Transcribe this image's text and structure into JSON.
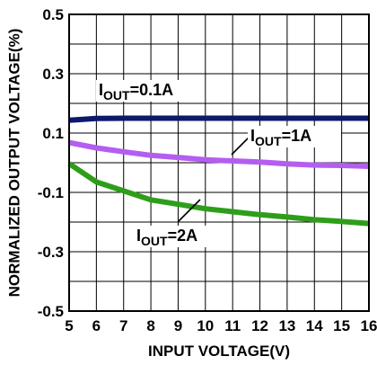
{
  "chart_data": {
    "type": "line",
    "xlabel": "INPUT VOLTAGE(V)",
    "ylabel": "NORMALIZED OUTPUT VOLTAGE(%)",
    "xlim": [
      5,
      16
    ],
    "ylim": [
      -0.5,
      0.5
    ],
    "x_ticks": [
      5,
      6,
      7,
      8,
      9,
      10,
      11,
      12,
      13,
      14,
      15,
      16
    ],
    "y_ticks": [
      -0.5,
      -0.3,
      -0.1,
      0.1,
      0.3,
      0.5
    ],
    "y_tick_labels": [
      "-0.5",
      "-0.3",
      "-0.1",
      "0.1",
      "0.3",
      "0.5"
    ],
    "grid": true,
    "series": [
      {
        "name": "IOUT=0.1A",
        "label_main": "I",
        "label_sub": "OUT",
        "label_rest": "=0.1A",
        "color": "#0d1a6b",
        "x": [
          5,
          6,
          7,
          8,
          9,
          10,
          11,
          12,
          13,
          14,
          15,
          16
        ],
        "y": [
          0.143,
          0.149,
          0.15,
          0.15,
          0.15,
          0.15,
          0.15,
          0.15,
          0.15,
          0.15,
          0.15,
          0.15
        ]
      },
      {
        "name": "IOUT=1A",
        "label_main": "I",
        "label_sub": "OUT",
        "label_rest": "=1A",
        "color": "#b45ef0",
        "x": [
          5,
          6,
          7,
          8,
          9,
          10,
          11,
          12,
          13,
          14,
          15,
          16
        ],
        "y": [
          0.068,
          0.05,
          0.037,
          0.025,
          0.018,
          0.01,
          0.006,
          0.002,
          -0.004,
          -0.008,
          -0.009,
          -0.012
        ]
      },
      {
        "name": "IOUT=2A",
        "label_main": "I",
        "label_sub": "OUT",
        "label_rest": "=2A",
        "color": "#2e9e1a",
        "x": [
          5,
          6,
          7,
          8,
          9,
          10,
          11,
          12,
          13,
          14,
          15,
          16
        ],
        "y": [
          -0.003,
          -0.065,
          -0.095,
          -0.125,
          -0.14,
          -0.155,
          -0.165,
          -0.175,
          -0.183,
          -0.192,
          -0.198,
          -0.205
        ]
      }
    ]
  }
}
